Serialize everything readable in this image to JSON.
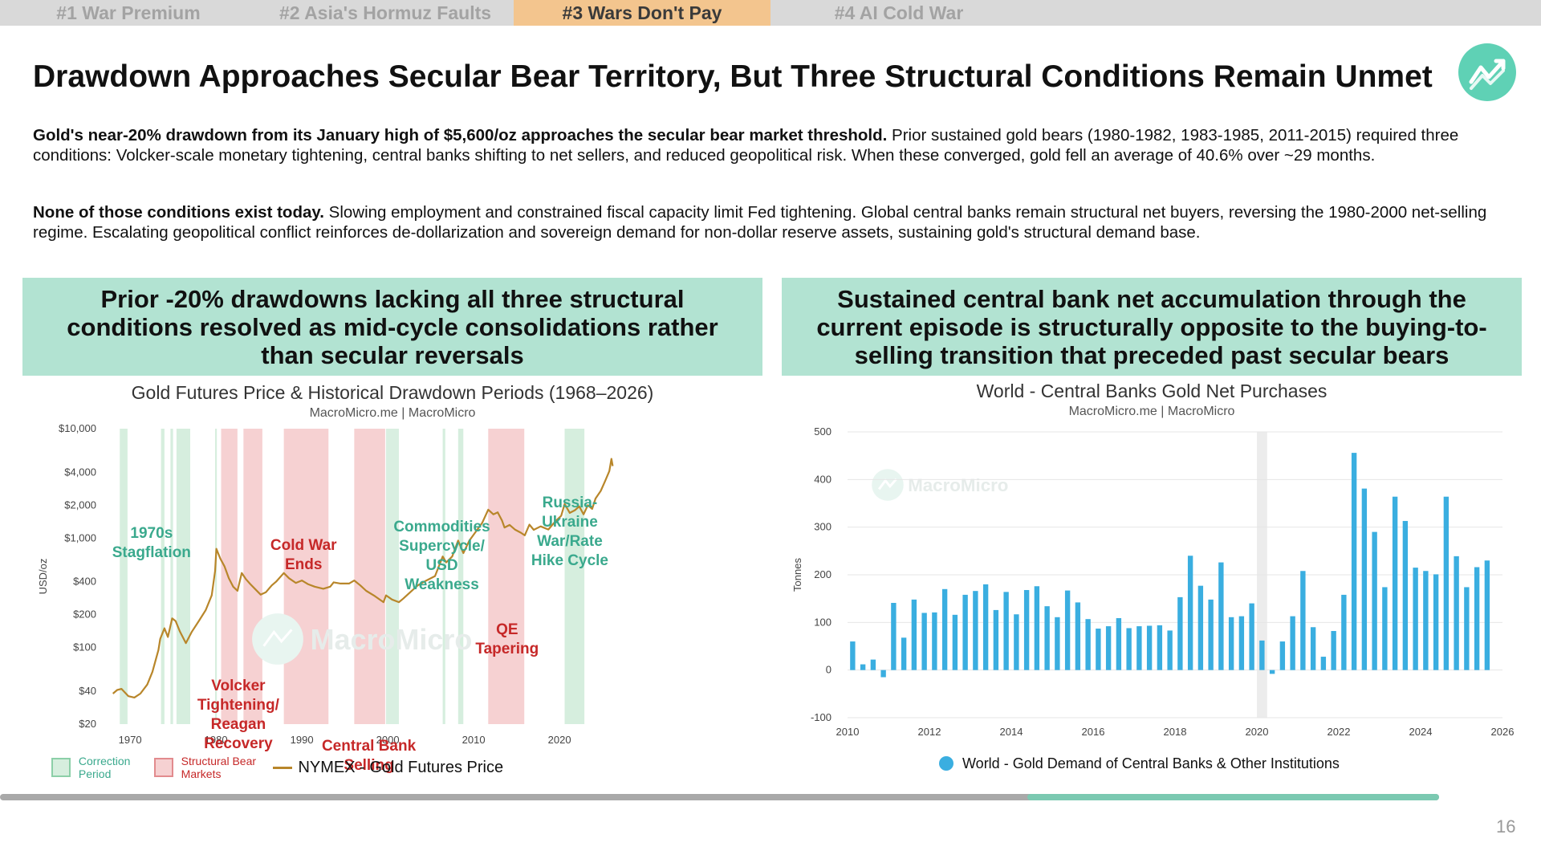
{
  "tabs": [
    {
      "label": "#1 War Premium",
      "active": false
    },
    {
      "label": "#2 Asia's Hormuz Faults",
      "active": false
    },
    {
      "label": "#3 Wars Don't Pay",
      "active": true
    },
    {
      "label": "#4 AI Cold War",
      "active": false
    }
  ],
  "title": "Drawdown Approaches Secular Bear Territory, But Three Structural Conditions Remain Unmet",
  "para1": {
    "bold": "Gold's near-20% drawdown from its January high of $5,600/oz approaches the secular bear market threshold.",
    "rest": " Prior sustained gold bears (1980-1982, 1983-1985, 2011-2015) required three conditions: Volcker-scale monetary tightening, central banks shifting to net sellers, and reduced geopolitical risk. When these converged, gold fell an average of 40.6% over ~29 months."
  },
  "para2": {
    "bold": "None of those conditions exist today.",
    "rest": " Slowing employment and constrained fiscal capacity limit Fed tightening. Global central banks remain structural net buyers, reversing the 1980-2000 net-selling regime. Escalating geopolitical conflict reinforces de-dollarization and sovereign demand for non-dollar reserve assets, sustaining gold's structural demand base."
  },
  "left_panel": {
    "header": "Prior -20% drawdowns lacking all three structural conditions resolved as mid-cycle consolidations rather than secular reversals"
  },
  "right_panel": {
    "header": "Sustained central bank net accumulation through the current episode is structurally opposite to the buying-to-selling transition that preceded past secular bears"
  },
  "watermark": "MacroMicro",
  "page_number": "16",
  "colors": {
    "accent": "#5fd1b5",
    "header_bg": "#b2e3d2",
    "active_tab": "#f3c58e",
    "correction": "#d6eede",
    "bear": "#f6d1d2",
    "gold_line": "#b8862a",
    "bars": "#3aaee0",
    "ann_green": "#3aa98d",
    "ann_red": "#c62828"
  },
  "chart_data": [
    {
      "type": "line",
      "title": "Gold Futures Price & Historical Drawdown Periods (1968–2026)",
      "subtitle": "MacroMicro.me | MacroMicro",
      "ylabel": "USD/oz",
      "yscale": "log",
      "ylim": [
        20,
        10000
      ],
      "xlim": [
        1967,
        2027
      ],
      "y_ticks": [
        {
          "v": 20,
          "label": "$20"
        },
        {
          "v": 40,
          "label": "$40"
        },
        {
          "v": 100,
          "label": "$100"
        },
        {
          "v": 200,
          "label": "$200"
        },
        {
          "v": 400,
          "label": "$400"
        },
        {
          "v": 1000,
          "label": "$1,000"
        },
        {
          "v": 2000,
          "label": "$2,000"
        },
        {
          "v": 4000,
          "label": "$4,000"
        },
        {
          "v": 10000,
          "label": "$10,000"
        }
      ],
      "x_ticks": [
        1970,
        1980,
        1990,
        2000,
        2010,
        2020
      ],
      "series": [
        {
          "name": "NYMEX - Gold Futures Price",
          "points": [
            [
              1968.0,
              38
            ],
            [
              1968.5,
              41
            ],
            [
              1969.0,
              42
            ],
            [
              1969.8,
              36
            ],
            [
              1970.5,
              35
            ],
            [
              1971.2,
              38
            ],
            [
              1972.0,
              46
            ],
            [
              1972.6,
              60
            ],
            [
              1973.3,
              95
            ],
            [
              1973.5,
              120
            ],
            [
              1974.0,
              150
            ],
            [
              1974.4,
              125
            ],
            [
              1974.9,
              185
            ],
            [
              1975.3,
              175
            ],
            [
              1975.8,
              140
            ],
            [
              1976.5,
              110
            ],
            [
              1977.2,
              140
            ],
            [
              1978.0,
              175
            ],
            [
              1978.8,
              220
            ],
            [
              1979.5,
              300
            ],
            [
              1979.9,
              500
            ],
            [
              1980.05,
              800
            ],
            [
              1980.5,
              650
            ],
            [
              1981.0,
              550
            ],
            [
              1981.5,
              430
            ],
            [
              1982.0,
              360
            ],
            [
              1982.5,
              330
            ],
            [
              1983.0,
              480
            ],
            [
              1983.5,
              420
            ],
            [
              1984.0,
              380
            ],
            [
              1984.6,
              340
            ],
            [
              1985.2,
              305
            ],
            [
              1985.8,
              320
            ],
            [
              1986.5,
              370
            ],
            [
              1987.0,
              400
            ],
            [
              1987.9,
              480
            ],
            [
              1988.5,
              430
            ],
            [
              1989.3,
              390
            ],
            [
              1990.0,
              410
            ],
            [
              1990.7,
              380
            ],
            [
              1991.5,
              360
            ],
            [
              1992.5,
              345
            ],
            [
              1993.3,
              360
            ],
            [
              1993.7,
              395
            ],
            [
              1994.5,
              385
            ],
            [
              1995.5,
              385
            ],
            [
              1996.1,
              410
            ],
            [
              1996.8,
              370
            ],
            [
              1997.5,
              330
            ],
            [
              1998.5,
              295
            ],
            [
              1999.5,
              260
            ],
            [
              1999.8,
              300
            ],
            [
              2000.5,
              275
            ],
            [
              2001.3,
              260
            ],
            [
              2001.8,
              280
            ],
            [
              2002.5,
              315
            ],
            [
              2003.5,
              370
            ],
            [
              2004.5,
              410
            ],
            [
              2005.5,
              450
            ],
            [
              2006.4,
              680
            ],
            [
              2006.8,
              600
            ],
            [
              2007.5,
              680
            ],
            [
              2008.2,
              950
            ],
            [
              2008.8,
              730
            ],
            [
              2009.5,
              950
            ],
            [
              2010.5,
              1220
            ],
            [
              2011.0,
              1380
            ],
            [
              2011.7,
              1820
            ],
            [
              2012.3,
              1650
            ],
            [
              2012.8,
              1720
            ],
            [
              2013.3,
              1450
            ],
            [
              2013.6,
              1250
            ],
            [
              2014.2,
              1320
            ],
            [
              2014.8,
              1200
            ],
            [
              2015.5,
              1120
            ],
            [
              2015.95,
              1060
            ],
            [
              2016.5,
              1330
            ],
            [
              2017.0,
              1190
            ],
            [
              2017.8,
              1280
            ],
            [
              2018.7,
              1200
            ],
            [
              2019.5,
              1420
            ],
            [
              2020.2,
              1600
            ],
            [
              2020.6,
              2050
            ],
            [
              2021.2,
              1700
            ],
            [
              2021.8,
              1800
            ],
            [
              2022.3,
              1950
            ],
            [
              2022.8,
              1650
            ],
            [
              2023.3,
              2000
            ],
            [
              2023.8,
              1850
            ],
            [
              2024.2,
              2300
            ],
            [
              2024.8,
              2700
            ],
            [
              2025.3,
              3300
            ],
            [
              2025.8,
              4100
            ],
            [
              2026.05,
              5300
            ],
            [
              2026.2,
              4550
            ]
          ]
        }
      ],
      "legend": [
        {
          "label": "Correction Period",
          "kind": "correction"
        },
        {
          "label": "Structural Bear Markets",
          "kind": "bear"
        },
        {
          "label": "NYMEX - Gold Futures Price",
          "kind": "line"
        }
      ],
      "correction_periods": [
        [
          1968.8,
          1969.7
        ],
        [
          1973.6,
          1974.0
        ],
        [
          1974.7,
          1975.0
        ],
        [
          1975.4,
          1977.0
        ],
        [
          1979.9,
          1980.1
        ],
        [
          2006.4,
          2006.7
        ],
        [
          2008.2,
          2008.8
        ],
        [
          2020.6,
          2022.9
        ]
      ],
      "bear_periods": [
        [
          1980.6,
          1982.5
        ],
        [
          1983.2,
          1985.4
        ],
        [
          1987.9,
          1993.1
        ],
        [
          1996.1,
          1999.7
        ],
        [
          2011.7,
          2015.9
        ]
      ],
      "bear_periods_light": [
        [
          1999.8,
          2001.3
        ]
      ],
      "annotations": [
        {
          "lines": [
            "1970s",
            "Stagflation"
          ],
          "x": 1972.5,
          "y": 200,
          "color": "green"
        },
        {
          "lines": [
            "Volcker",
            "Tightening/",
            "Reagan",
            "Recovery"
          ],
          "x": 1982.6,
          "y": 390,
          "color": "red"
        },
        {
          "lines": [
            "Cold War",
            "Ends"
          ],
          "x": 1990.2,
          "y": 215,
          "color": "red"
        },
        {
          "lines": [
            "Central Bank",
            "Selling"
          ],
          "x": 1997.8,
          "y": 465,
          "color": "red"
        },
        {
          "lines": [
            "Commodities",
            "Supercycle/",
            "USD",
            "Weakness"
          ],
          "x": 2006.3,
          "y": 192,
          "color": "green"
        },
        {
          "lines": [
            "QE",
            "Tapering"
          ],
          "x": 2013.9,
          "y": 320,
          "color": "red"
        },
        {
          "lines": [
            "Russia-",
            "Ukraine",
            "War/Rate",
            "Hike Cycle"
          ],
          "x": 2021.2,
          "y": 162,
          "color": "green"
        }
      ]
    },
    {
      "type": "bar",
      "title": "World - Central Banks Gold Net Purchases",
      "subtitle": "MacroMicro.me | MacroMicro",
      "ylabel": "Tonnes",
      "ylim": [
        -100,
        500
      ],
      "xlim": [
        2010,
        2026
      ],
      "y_ticks": [
        -100,
        0,
        100,
        200,
        300,
        400,
        500
      ],
      "x_ticks": [
        2010,
        2012,
        2014,
        2016,
        2018,
        2020,
        2022,
        2024,
        2026
      ],
      "series": [
        {
          "name": "World - Gold Demand of Central Banks & Other Institutions",
          "x_start": 2010.0,
          "x_step": 0.25,
          "values": [
            60,
            12,
            22,
            -15,
            141,
            68,
            148,
            120,
            121,
            170,
            116,
            158,
            166,
            180,
            126,
            164,
            117,
            168,
            176,
            134,
            111,
            167,
            142,
            107,
            87,
            92,
            109,
            88,
            92,
            93,
            94,
            83,
            153,
            240,
            177,
            148,
            226,
            111,
            113,
            140,
            62,
            -8,
            60,
            113,
            208,
            90,
            28,
            82,
            158,
            456,
            381,
            290,
            174,
            364,
            313,
            215,
            208,
            201,
            364,
            239,
            174,
            216,
            230
          ]
        }
      ],
      "shaded": [
        [
          2020.0,
          2020.25
        ]
      ],
      "legend": [
        {
          "label": "World - Gold Demand of Central Banks & Other Institutions"
        }
      ]
    }
  ]
}
